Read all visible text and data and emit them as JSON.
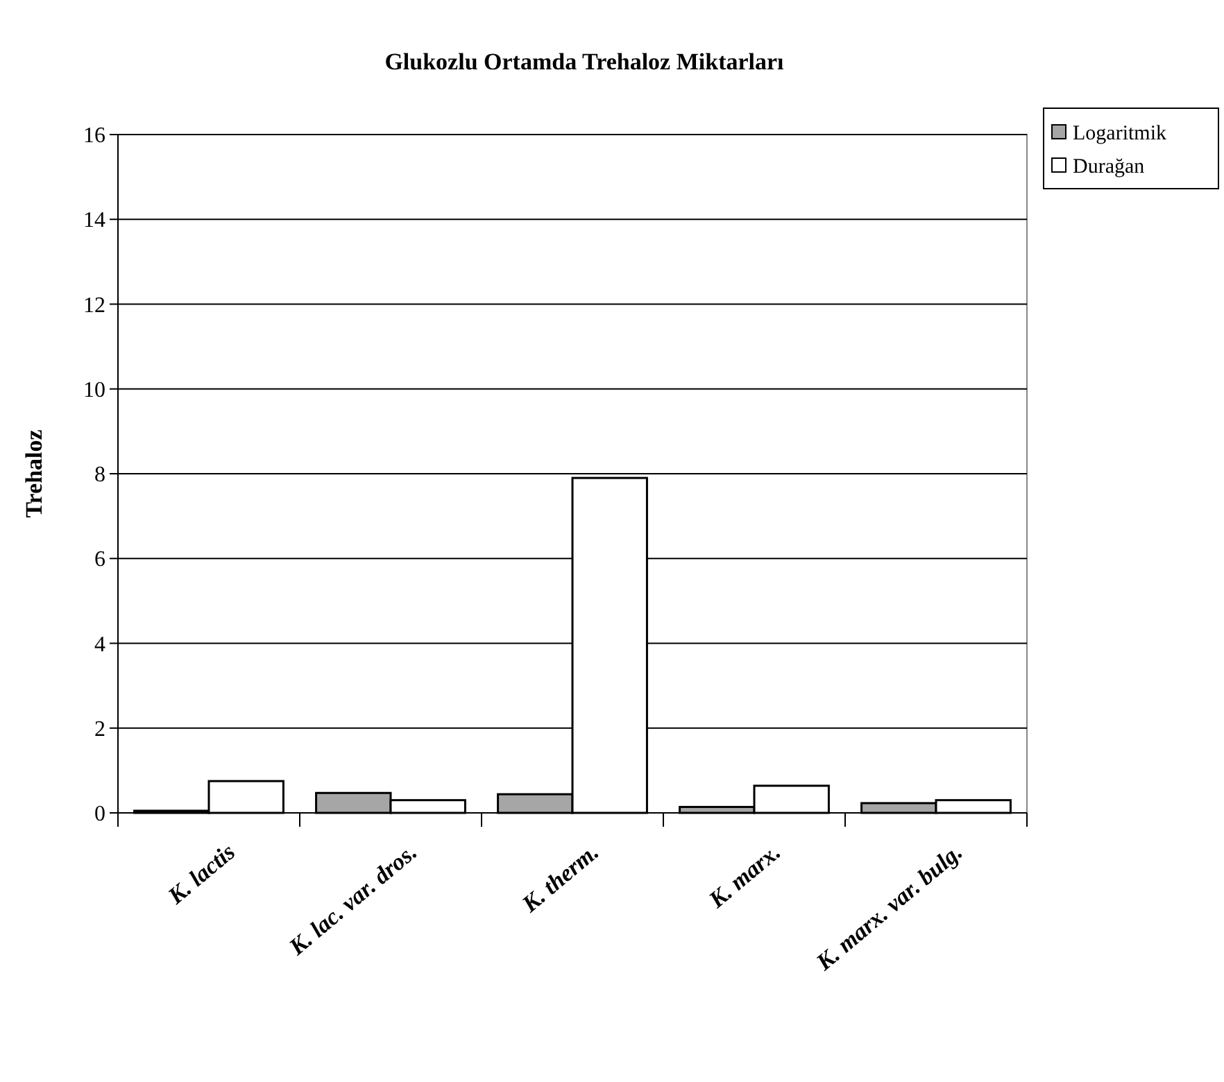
{
  "chart_data": {
    "type": "bar",
    "title": "Glukozlu Ortamda Trehaloz Miktarları",
    "ylabel": "Trehaloz",
    "categories": [
      "K. lactis",
      "K. lac. var. dros.",
      "K. therm.",
      "K. marx.",
      "K. marx. var. bulg."
    ],
    "series": [
      {
        "name": "Logaritmik",
        "color": "#a6a6a6",
        "values": [
          0.05,
          0.47,
          0.44,
          0.14,
          0.23
        ]
      },
      {
        "name": "Durağan",
        "color": "#ffffff",
        "values": [
          0.75,
          0.3,
          7.9,
          0.64,
          0.3
        ]
      }
    ],
    "ylim": [
      0,
      16
    ],
    "yticks": [
      0,
      2,
      4,
      6,
      8,
      10,
      12,
      14,
      16
    ],
    "grid": "y",
    "legend": "top right"
  }
}
